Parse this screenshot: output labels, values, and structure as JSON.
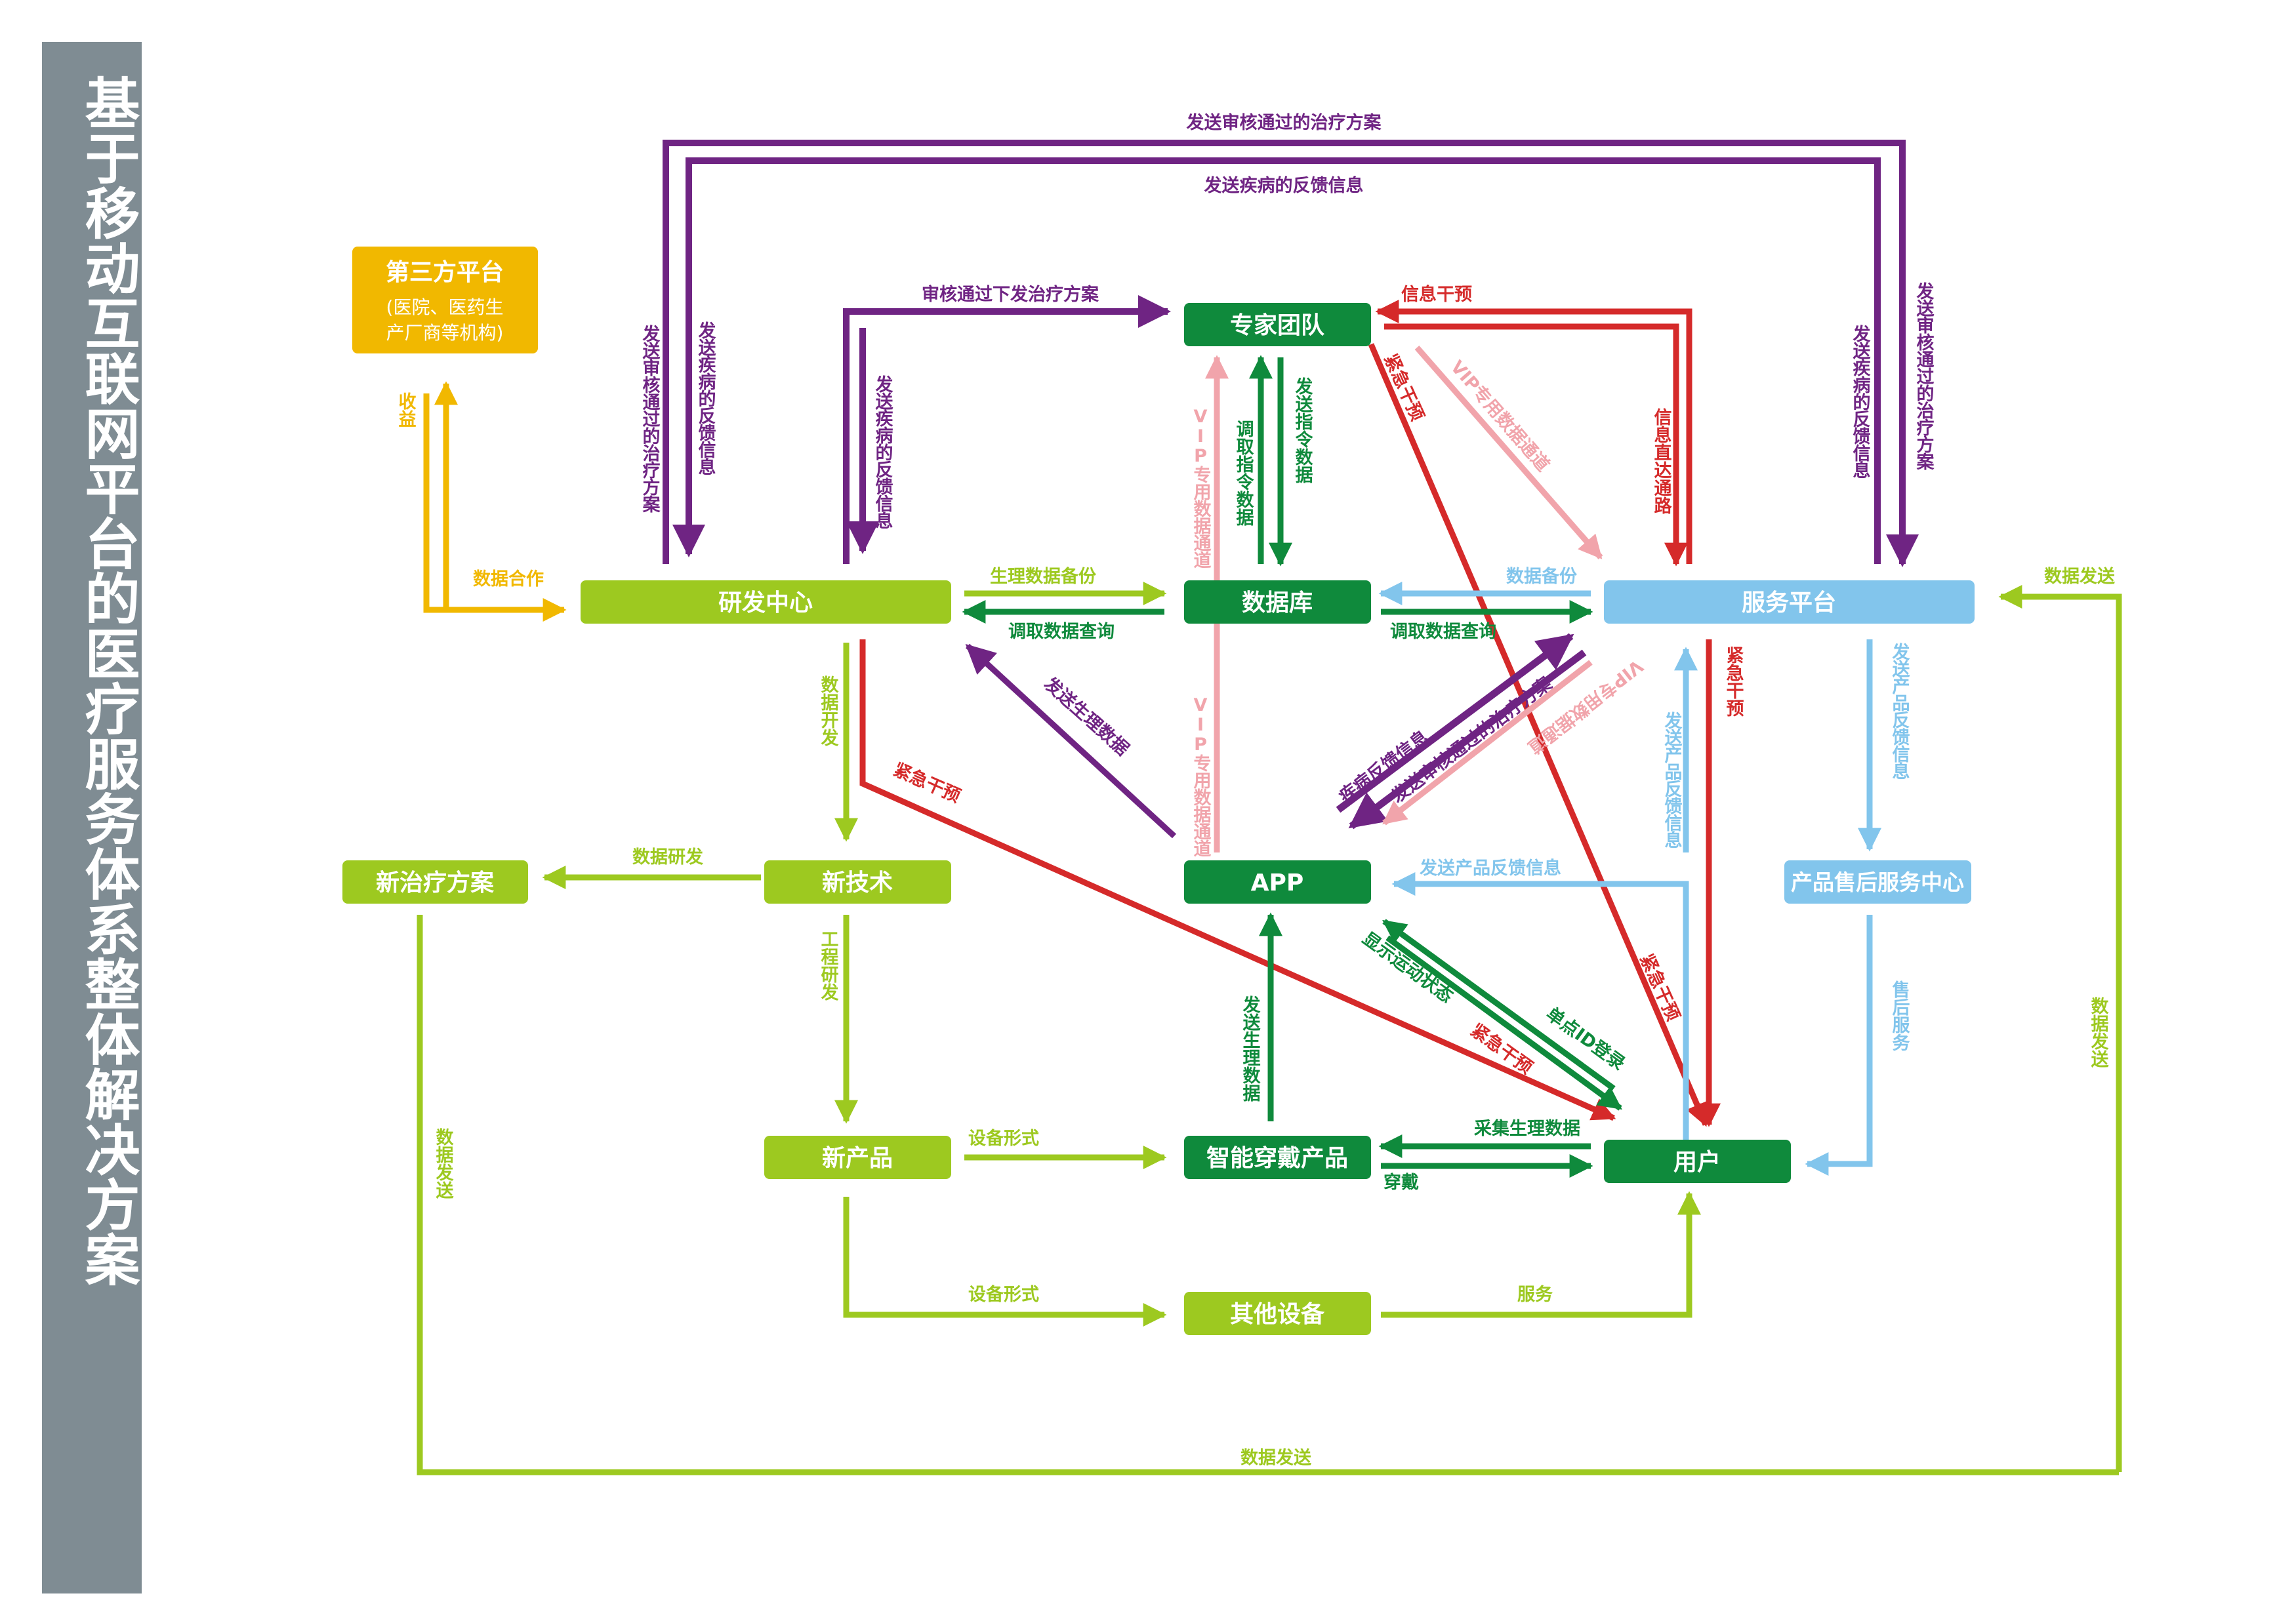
{
  "title": "基于移动互联网平台的医疗服务体系整体解决方案",
  "colors": {
    "sidebar": "#7f8c93",
    "purple": "#6f2483",
    "red": "#d52a2a",
    "pink": "#f1a4ab",
    "green": "#0f8a3c",
    "lightgreen": "#9dc920",
    "blue": "#82c5ec",
    "orange": "#f1b800"
  },
  "nodes": {
    "third_party": {
      "title": "第三方平台",
      "sub1": "(医院、医药生",
      "sub2": "产厂商等机构)"
    },
    "expert_team": "专家团队",
    "rd_center": "研发中心",
    "database": "数据库",
    "service_platform": "服务平台",
    "new_plan": "新治疗方案",
    "new_tech": "新技术",
    "app": "APP",
    "after_sales": "产品售后服务中心",
    "new_product": "新产品",
    "wearable": "智能穿戴产品",
    "user": "用户",
    "other_devices": "其他设备"
  },
  "edges": {
    "top_outer": "发送审核通过的治疗方案",
    "top_inner": "发送疾病的反馈信息",
    "left_outer_v": "发送审核通过的治疗方案",
    "left_inner_v": "发送疾病的反馈信息",
    "right_inner_v": "发送疾病的反馈信息",
    "right_outer_v": "发送审核通过的治疗方案",
    "approved_send": "审核通过下发治疗方案",
    "rd_feedback_v": "发送疾病的反馈信息",
    "info_intervene": "信息干预",
    "info_direct": "信息直达通路",
    "revenue": "收益",
    "data_coop": "数据合作",
    "emergency_expert": "紧急干预",
    "vip_expert": "VIP专用数据通道",
    "vip_db_expert": "VIP专用数据通道",
    "fetch_cmd": "调取指令数据",
    "send_cmd": "发送指令数据",
    "physio_backup": "生理数据备份",
    "fetch_query_rd": "调取数据查询",
    "data_backup": "数据备份",
    "fetch_query_sp": "调取数据查询",
    "data_send_right": "数据发送",
    "send_physio": "发送生理数据",
    "data_dev": "数据开发",
    "emergency_rd": "紧急干预",
    "vip_app": "VIP专用数据通道",
    "disease_feedback": "疾病反馈信息",
    "send_approved_app": "发送审核通过的治疗方案",
    "vip_sp": "VIP专用数据通道",
    "product_feedback_v": "发送产品反馈信息",
    "emergency_sp": "紧急干预",
    "product_feedback_h": "发送产品反馈信息",
    "product_feedback_down": "发送产品反馈信息",
    "data_research": "数据研发",
    "show_status": "显示运动状态",
    "single_login": "单点ID登录",
    "emergency_user": "紧急干预",
    "engineering": "工程研发",
    "after_sales_service": "售后服务",
    "data_send_left": "数据发送",
    "data_send_right_v": "数据发送",
    "device_form_1": "设备形式",
    "device_form_2": "设备形式",
    "collect_physio": "采集生理数据",
    "wear": "穿戴",
    "service": "服务",
    "emergency_user2": "紧急干预",
    "send_physio_app": "发送生理数据",
    "data_send_bottom": "数据发送"
  }
}
